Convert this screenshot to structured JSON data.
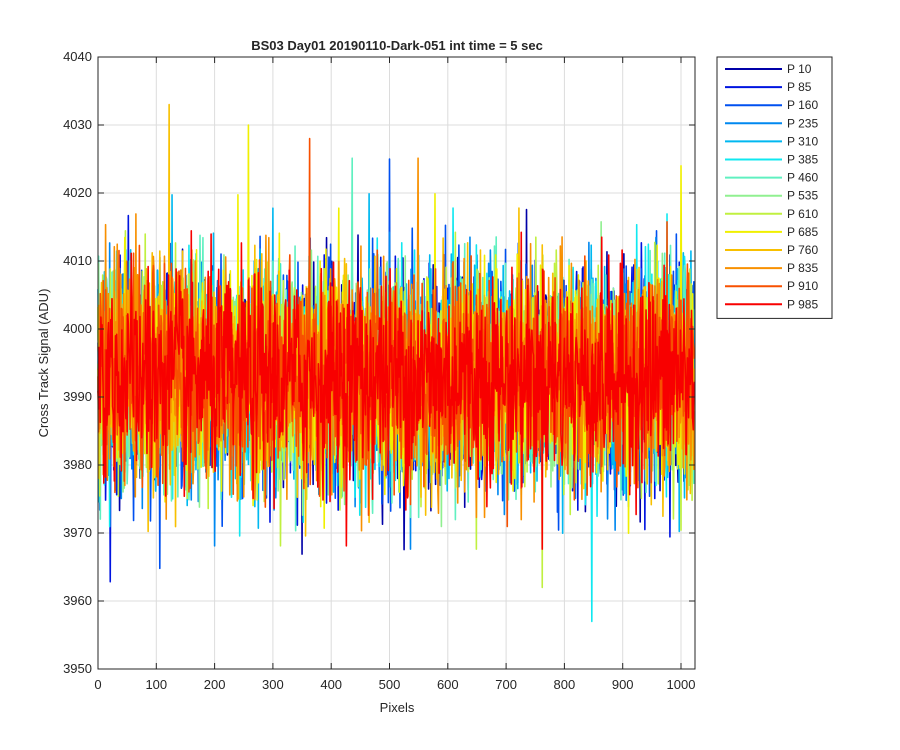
{
  "chart_data": {
    "type": "line",
    "title": "BS03 Day01 20190110-Dark-051 int time = 5 sec",
    "xlabel": "Pixels",
    "ylabel": "Cross Track Signal (ADU)",
    "xlim": [
      0,
      1024
    ],
    "ylim": [
      3950,
      4040
    ],
    "xticks": [
      0,
      100,
      200,
      300,
      400,
      500,
      600,
      700,
      800,
      900,
      1000
    ],
    "yticks": [
      3950,
      3960,
      3970,
      3980,
      3990,
      4000,
      4010,
      4020,
      4030,
      4040
    ],
    "grid": true,
    "legend_position": "outside-top-right",
    "series_count_points": 1024,
    "series": [
      {
        "name": "P 10",
        "color": "#0000a8",
        "mean": 3993,
        "spread": 7.5
      },
      {
        "name": "P 85",
        "color": "#0014e0",
        "mean": 3993,
        "spread": 7.5
      },
      {
        "name": "P 160",
        "color": "#0050f0",
        "mean": 3993,
        "spread": 7.5
      },
      {
        "name": "P 235",
        "color": "#0088f0",
        "mean": 3993,
        "spread": 7.5
      },
      {
        "name": "P 310",
        "color": "#00b8f0",
        "mean": 3993,
        "spread": 7.5
      },
      {
        "name": "P 385",
        "color": "#10e8f0",
        "mean": 3993,
        "spread": 7.5
      },
      {
        "name": "P 460",
        "color": "#60f0c0",
        "mean": 3993,
        "spread": 7.5
      },
      {
        "name": "P 535",
        "color": "#90f090",
        "mean": 3993,
        "spread": 7.5
      },
      {
        "name": "P 610",
        "color": "#c0f040",
        "mean": 3993,
        "spread": 7.5
      },
      {
        "name": "P 685",
        "color": "#f0f000",
        "mean": 3993,
        "spread": 7.5
      },
      {
        "name": "P 760",
        "color": "#f8c000",
        "mean": 3993,
        "spread": 7.5
      },
      {
        "name": "P 835",
        "color": "#f89000",
        "mean": 3993,
        "spread": 7.5
      },
      {
        "name": "P 910",
        "color": "#f85000",
        "mean": 3993,
        "spread": 7.5
      },
      {
        "name": "P 985",
        "color": "#f80000",
        "mean": 3993,
        "spread": 7.5
      }
    ],
    "notable_peaks": [
      {
        "series": "P 760",
        "x": 122,
        "y": 4033
      },
      {
        "series": "P 685",
        "x": 258,
        "y": 4030
      },
      {
        "series": "P 910",
        "x": 363,
        "y": 4028
      },
      {
        "series": "P 160",
        "x": 500,
        "y": 4025
      },
      {
        "series": "P 685",
        "x": 1000,
        "y": 4024
      },
      {
        "series": "P 385",
        "x": 847,
        "y": 3957
      },
      {
        "series": "P 610",
        "x": 762,
        "y": 3962
      }
    ]
  }
}
